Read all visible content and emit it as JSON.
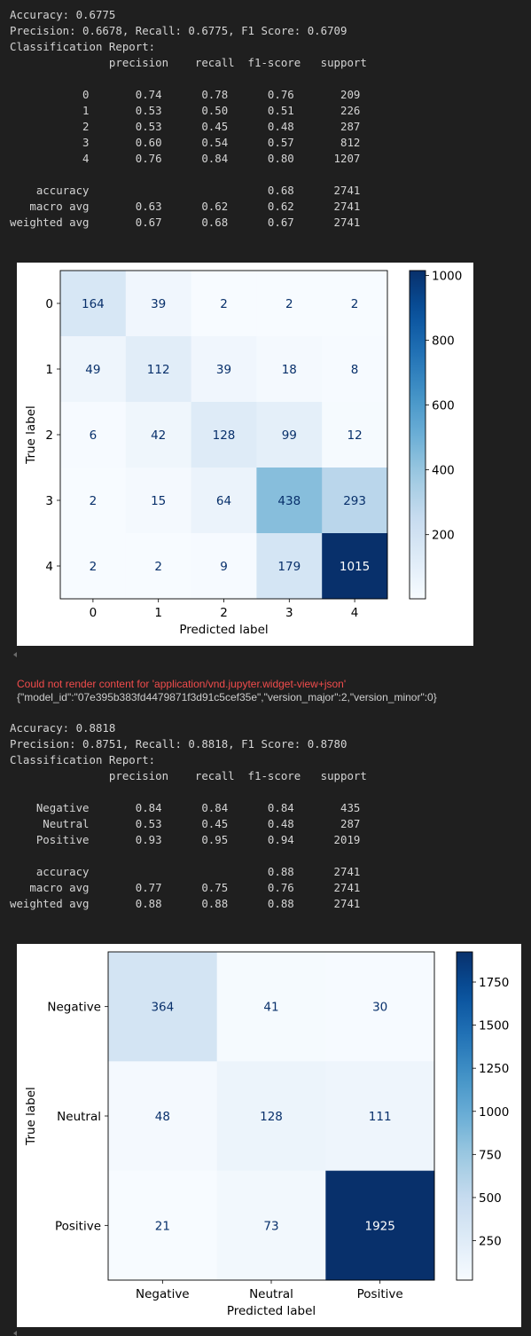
{
  "output1": {
    "lines": [
      "Accuracy: 0.6775",
      "Precision: 0.6678, Recall: 0.6775, F1 Score: 0.6709",
      "Classification Report:",
      "               precision    recall  f1-score   support",
      "",
      "           0       0.74      0.78      0.76       209",
      "           1       0.53      0.50      0.51       226",
      "           2       0.53      0.45      0.48       287",
      "           3       0.60      0.54      0.57       812",
      "           4       0.76      0.84      0.80      1207",
      "",
      "    accuracy                           0.68      2741",
      "   macro avg       0.63      0.62      0.62      2741",
      "weighted avg       0.67      0.68      0.67      2741"
    ]
  },
  "error": {
    "message": "Could not render content for 'application/vnd.jupyter.widget-view+json'",
    "json": "{\"model_id\":\"07e395b383fd4479871f3d91c5cef35e\",\"version_major\":2,\"version_minor\":0}"
  },
  "output2": {
    "lines": [
      "Accuracy: 0.8818",
      "Precision: 0.8751, Recall: 0.8818, F1 Score: 0.8780",
      "Classification Report:",
      "               precision    recall  f1-score   support",
      "",
      "    Negative       0.84      0.84      0.84       435",
      "     Neutral       0.53      0.45      0.48       287",
      "    Positive       0.93      0.95      0.94      2019",
      "",
      "    accuracy                           0.88      2741",
      "   macro avg       0.77      0.75      0.76      2741",
      "weighted avg       0.88      0.88      0.88      2741"
    ]
  },
  "chart_data": [
    {
      "type": "heatmap",
      "title": "",
      "xlabel": "Predicted label",
      "ylabel": "True label",
      "x_categories": [
        "0",
        "1",
        "2",
        "3",
        "4"
      ],
      "y_categories": [
        "0",
        "1",
        "2",
        "3",
        "4"
      ],
      "matrix": [
        [
          164,
          39,
          2,
          2,
          2
        ],
        [
          49,
          112,
          39,
          18,
          8
        ],
        [
          6,
          42,
          128,
          99,
          12
        ],
        [
          2,
          15,
          64,
          438,
          293
        ],
        [
          2,
          2,
          9,
          179,
          1015
        ]
      ],
      "colormap": "Blues",
      "colorbar_ticks": [
        200,
        400,
        600,
        800,
        1000
      ]
    },
    {
      "type": "heatmap",
      "title": "",
      "xlabel": "Predicted label",
      "ylabel": "True label",
      "x_categories": [
        "Negative",
        "Neutral",
        "Positive"
      ],
      "y_categories": [
        "Negative",
        "Neutral",
        "Positive"
      ],
      "matrix": [
        [
          364,
          41,
          30
        ],
        [
          48,
          128,
          111
        ],
        [
          21,
          73,
          1925
        ]
      ],
      "colormap": "Blues",
      "colorbar_ticks": [
        250,
        500,
        750,
        1000,
        1250,
        1500,
        1750
      ]
    }
  ]
}
